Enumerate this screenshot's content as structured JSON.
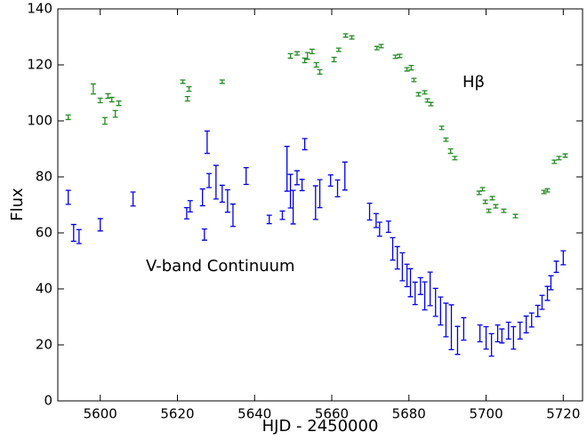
{
  "chart_data": {
    "type": "errorbar",
    "xlabel": "HJD - 2450000",
    "ylabel": "Flux",
    "xlim": [
      5589,
      5725
    ],
    "ylim": [
      0,
      140
    ],
    "xticks": [
      5600,
      5620,
      5640,
      5660,
      5680,
      5700,
      5720
    ],
    "yticks": [
      0,
      20,
      40,
      60,
      80,
      100,
      120,
      140
    ],
    "series": [
      {
        "name": "Hβ",
        "color": "#228b22",
        "x": [
          5591.7,
          5598.2,
          5600,
          5601.2,
          5602,
          5603,
          5603.9,
          5604.8,
          5621.4,
          5623,
          5622.6,
          5631.6,
          5649.3,
          5651,
          5653,
          5653.7,
          5654.9,
          5656,
          5656.9,
          5660.6,
          5661.8,
          5663.6,
          5665.2,
          5671.7,
          5672.8,
          5676.5,
          5677.6,
          5679.5,
          5680.6,
          5681.3,
          5682.5,
          5684.1,
          5684.8,
          5685.7,
          5688.5,
          5689.6,
          5690.8,
          5691.9,
          5698.2,
          5699.1,
          5699.8,
          5700.7,
          5701.6,
          5702.5,
          5704.6,
          5707.6,
          5715,
          5715.9,
          5717.7,
          5718.9,
          5720.5
        ],
        "values": [
          101.3,
          111.4,
          107.3,
          100,
          108.9,
          107.6,
          102.5,
          106.3,
          114,
          111.4,
          107.9,
          114,
          123.2,
          124.1,
          121.6,
          123.2,
          124.8,
          120,
          117.5,
          121.9,
          125.4,
          130.5,
          129.8,
          126,
          126.7,
          122.9,
          123.2,
          118.4,
          119,
          114.6,
          109.5,
          110.2,
          107.3,
          106,
          97.5,
          93.3,
          89.2,
          86.7,
          74.3,
          75.6,
          71.1,
          67.9,
          72.4,
          69.5,
          67.9,
          66,
          74.6,
          75.2,
          85.4,
          86.7,
          87.6
        ],
        "errors": [
          0.8,
          1.8,
          0.8,
          1.2,
          0.8,
          0.8,
          1.2,
          0.8,
          0.6,
          0.8,
          0.8,
          0.6,
          0.8,
          0.6,
          0.8,
          1.2,
          0.8,
          0.8,
          0.8,
          0.8,
          0.6,
          0.6,
          0.6,
          0.6,
          0.6,
          0.6,
          0.6,
          0.6,
          0.8,
          0.6,
          0.6,
          0.6,
          0.6,
          0.6,
          0.6,
          0.6,
          0.8,
          0.6,
          0.6,
          0.6,
          0.6,
          0.6,
          0.6,
          0.6,
          0.6,
          0.6,
          0.6,
          0.6,
          0.6,
          0.6,
          0.6
        ]
      },
      {
        "name": "V-band Continuum",
        "color": "#0000ee",
        "x": [
          5591.7,
          5593.1,
          5594.5,
          5600,
          5608.5,
          5622.4,
          5623.3,
          5626.5,
          5627,
          5627.7,
          5628.2,
          5630,
          5631.6,
          5633,
          5634.4,
          5637.8,
          5643.8,
          5647.2,
          5648.4,
          5649.3,
          5650,
          5651,
          5652.3,
          5653,
          5655.8,
          5656.9,
          5659.7,
          5661.5,
          5663.4,
          5669.8,
          5671.5,
          5672.4,
          5674.7,
          5675.8,
          5677,
          5678.3,
          5679.5,
          5680.4,
          5681.6,
          5683,
          5684.1,
          5685.5,
          5686.9,
          5688.2,
          5689.6,
          5691,
          5692.6,
          5694.2,
          5698.4,
          5700,
          5701.4,
          5703,
          5704.1,
          5705.8,
          5707.1,
          5708.8,
          5710.4,
          5711.8,
          5713.4,
          5714.5,
          5715.9,
          5716.8,
          5718.2,
          5720
        ],
        "values": [
          72.7,
          60,
          58.7,
          62.9,
          72.1,
          67,
          69.5,
          72.7,
          59.4,
          92.4,
          78.7,
          78.1,
          74,
          71.4,
          66.3,
          80.3,
          64.8,
          66.3,
          82.9,
          74.9,
          69.2,
          79.7,
          77.1,
          91.7,
          70.8,
          74,
          78.7,
          75.9,
          80.3,
          67.6,
          64.4,
          61.3,
          62.2,
          54.3,
          51.1,
          47.9,
          44.8,
          42.2,
          38.4,
          41,
          37.5,
          40,
          35.2,
          32.1,
          28.9,
          26.3,
          21.6,
          25.7,
          24.1,
          22.5,
          20,
          24.1,
          23.2,
          25.1,
          22.5,
          25.1,
          27.3,
          28.9,
          32.1,
          35.2,
          38.4,
          42.2,
          47.9,
          51.1
        ],
        "errors": [
          2.5,
          3,
          2.5,
          2.2,
          2.5,
          2,
          2,
          3,
          2,
          4,
          2.5,
          6,
          3,
          4,
          4,
          3,
          1.5,
          1.5,
          8,
          6,
          6,
          2.5,
          2,
          2,
          6,
          5,
          2,
          3,
          5,
          3,
          2.5,
          2.5,
          2,
          4,
          4,
          5,
          4,
          5,
          4,
          3,
          5,
          6,
          5,
          5,
          6,
          8,
          5,
          4,
          3,
          4,
          4,
          3,
          2.5,
          3,
          4,
          3,
          3,
          2.5,
          2,
          2.5,
          2.5,
          2.5,
          2,
          2.5
        ]
      }
    ]
  }
}
